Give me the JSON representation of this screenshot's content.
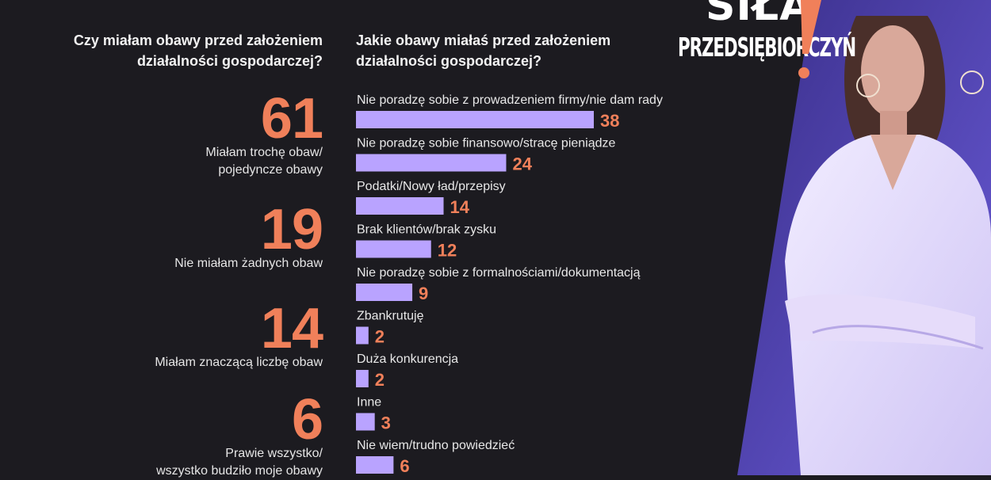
{
  "left_panel": {
    "question": "Czy miałam obawy przed założeniem działalności gospodarczej?",
    "question_lines": [
      "Czy miałam obawy przed założeniem",
      "działalności gospodarczej?"
    ],
    "stats": [
      {
        "value": "61",
        "label_lines": [
          "Miałam trochę obaw/",
          "pojedyncze obawy"
        ]
      },
      {
        "value": "19",
        "label_lines": [
          "Nie miałam żadnych obaw"
        ]
      },
      {
        "value": "14",
        "label_lines": [
          "Miałam znaczącą liczbę obaw"
        ]
      },
      {
        "value": "6",
        "label_lines": [
          "Prawie wszystko/",
          "wszystko budziło moje obawy"
        ]
      }
    ]
  },
  "right_panel": {
    "question_lines": [
      "Jakie obawy miałaś przed założeniem",
      "działalności gospodarczej?"
    ]
  },
  "brand": {
    "line1": "SIŁA",
    "line2": "PRZEDSIĘBIORCZYŃ"
  },
  "colors": {
    "background": "#1c1b20",
    "accent_orange": "#f0805a",
    "bar_purple": "#b9a3ff",
    "photo_tint": "#5b4bd6"
  },
  "chart_data": [
    {
      "type": "bar",
      "orientation": "horizontal",
      "categories": [
        "Nie poradzę sobie z prowadzeniem firmy/nie dam rady",
        "Nie poradzę sobie finansowo/stracę pieniądze",
        "Podatki/Nowy ład/przepisy",
        "Brak klientów/brak zysku",
        "Nie poradzę sobie z formalnościami/dokumentacją",
        "Zbankrutuję",
        "Duża konkurencja",
        "Inne",
        "Nie wiem/trudno powiedzieć"
      ],
      "values": [
        38,
        24,
        14,
        12,
        9,
        2,
        2,
        3,
        6
      ],
      "title": "Jakie obawy miałaś przed założeniem działalności gospodarczej?",
      "data_labels": true,
      "grid": false
    }
  ]
}
